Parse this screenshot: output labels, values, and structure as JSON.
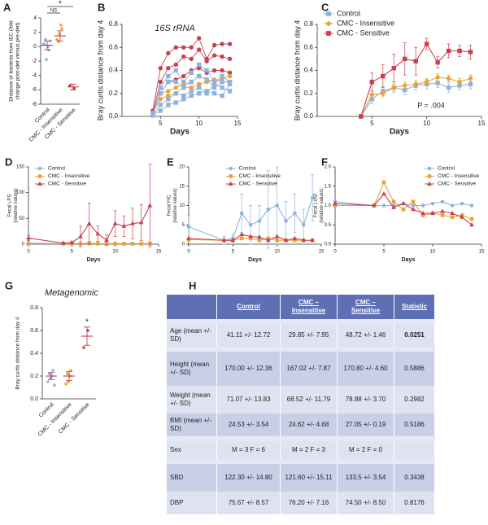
{
  "chart_data": [
    {
      "type": "dotplot",
      "panel": "A",
      "ylabel": [
        "Distance of bacteria from IEC (fold",
        "change post-diet versus pre-diet)"
      ],
      "categories": [
        "Control",
        "CMC - Insensitive",
        "CMC - Sensitive"
      ],
      "colors": [
        "#8fb3de",
        "#e8a33a",
        "#c9404f"
      ],
      "points": [
        [
          0.3,
          0,
          -0.5,
          1,
          -1.8,
          0.8,
          0.4
        ],
        [
          1,
          3,
          2.5,
          0.7,
          1.8
        ],
        [
          -5.4,
          -5.8
        ]
      ],
      "means": [
        0.2,
        1.5,
        -5.6
      ],
      "sd": [
        0.6,
        0.7,
        0.4
      ],
      "significance": [
        {
          "text": "NS",
          "between": [
            0,
            1
          ]
        },
        {
          "text": "*",
          "between": [
            0,
            2
          ]
        }
      ],
      "ylim": [
        -8,
        4
      ],
      "yticks": [
        -8,
        -6,
        -4,
        -2,
        0,
        2,
        4
      ]
    },
    {
      "type": "line",
      "panel": "B",
      "annotation": "16S rRNA",
      "ylabel": [
        "Bray curtis distance from day 4"
      ],
      "xlabel": "Days",
      "x": [
        4,
        5,
        6,
        7,
        8,
        9,
        10,
        11,
        12,
        13,
        14
      ],
      "series": [
        {
          "color": "#c9404f",
          "marker": "circle",
          "values": [
            0.05,
            0.42,
            0.55,
            0.6,
            0.6,
            0.6,
            0.68,
            0.5,
            0.62,
            0.63,
            0.63
          ]
        },
        {
          "color": "#c9404f",
          "marker": "circle",
          "values": [
            0.03,
            0.3,
            0.42,
            0.45,
            0.52,
            0.5,
            0.58,
            0.48,
            0.53,
            0.52,
            0.5
          ]
        },
        {
          "color": "#c9404f",
          "marker": "circle",
          "values": [
            0.02,
            0.2,
            0.3,
            0.32,
            0.35,
            0.4,
            0.42,
            0.38,
            0.4,
            0.4,
            0.38
          ]
        },
        {
          "color": "#e8a33a",
          "marker": "circle",
          "values": [
            0.02,
            0.2,
            0.22,
            0.25,
            0.28,
            0.3,
            0.35,
            0.32,
            0.3,
            0.33,
            0.35
          ]
        },
        {
          "color": "#e8a33a",
          "marker": "circle",
          "values": [
            0.03,
            0.15,
            0.18,
            0.2,
            0.25,
            0.25,
            0.28,
            0.3,
            0.32,
            0.3,
            0.3
          ]
        },
        {
          "color": "#8fb3de",
          "marker": "square",
          "values": [
            0.02,
            0.2,
            0.3,
            0.3,
            0.25,
            0.3,
            0.35,
            0.32,
            0.25,
            0.3,
            0.3
          ]
        },
        {
          "color": "#8fb3de",
          "marker": "square",
          "values": [
            0.01,
            0.1,
            0.15,
            0.2,
            0.18,
            0.22,
            0.25,
            0.2,
            0.28,
            0.25,
            0.22
          ]
        },
        {
          "color": "#8fb3de",
          "marker": "square",
          "values": [
            0.02,
            0.25,
            0.35,
            0.4,
            0.3,
            0.38,
            0.45,
            0.4,
            0.3,
            0.35,
            0.3
          ]
        },
        {
          "color": "#8fb3de",
          "marker": "square",
          "values": [
            0.01,
            0.05,
            0.1,
            0.12,
            0.15,
            0.18,
            0.2,
            0.22,
            0.2,
            0.18,
            0.28
          ]
        }
      ],
      "xlim": [
        0,
        15
      ],
      "xticks": [
        5,
        10,
        15
      ],
      "ylim": [
        0,
        0.8
      ],
      "yticks": [
        {
          "value": 0,
          "label": "0.0"
        },
        0.2,
        0.4,
        0.6,
        0.8
      ]
    },
    {
      "type": "line",
      "panel": "C",
      "annotation": "P = .004",
      "legend": "upper left",
      "ylabel": [
        "Bray curtis distance from day 4"
      ],
      "xlabel": "Days",
      "x": [
        4,
        5,
        6,
        7,
        8,
        9,
        10,
        11,
        12,
        13,
        14
      ],
      "series": [
        {
          "name": "Control",
          "color": "#8fb3de",
          "marker": "square",
          "values": [
            0,
            0.15,
            0.22,
            0.25,
            0.23,
            0.27,
            0.28,
            0.29,
            0.25,
            0.27,
            0.28
          ],
          "errors": [
            0,
            0.04,
            0.04,
            0.04,
            0.04,
            0.04,
            0.04,
            0.04,
            0.04,
            0.04,
            0.04
          ]
        },
        {
          "name": "CMC - Insensitive",
          "color": "#e8a33a",
          "marker": "circle",
          "values": [
            0,
            0.19,
            0.2,
            0.25,
            0.27,
            0.28,
            0.3,
            0.34,
            0.33,
            0.3,
            0.33
          ],
          "errors": [
            0,
            0.03,
            0.03,
            0.03,
            0.03,
            0.03,
            0.03,
            0.03,
            0.03,
            0.03,
            0.03
          ]
        },
        {
          "name": "CMC - Sensitive",
          "color": "#c9404f",
          "marker": "square",
          "values": [
            0,
            0.3,
            0.35,
            0.42,
            0.5,
            0.48,
            0.63,
            0.47,
            0.57,
            0.57,
            0.56
          ],
          "errors": [
            0,
            0.08,
            0.1,
            0.12,
            0.14,
            0.12,
            0.05,
            0.05,
            0.06,
            0.05,
            0.06
          ]
        }
      ],
      "xlim": [
        0,
        15
      ],
      "xticks": [
        5,
        10,
        15
      ],
      "ylim": [
        0,
        0.8
      ],
      "yticks": [
        {
          "value": 0,
          "label": "0.0"
        },
        0.2,
        0.4,
        0.6,
        0.8
      ]
    },
    {
      "type": "line",
      "panel": "D",
      "legend": "upper left",
      "ylabel": [
        "Fecal LPS",
        "(relative values)"
      ],
      "xlabel": "Days",
      "x": [
        0,
        4,
        5,
        6,
        7,
        8,
        9,
        10,
        11,
        12,
        13,
        14
      ],
      "series": [
        {
          "name": "Control",
          "color": "#8fb3de",
          "marker": "circle",
          "values": [
            2,
            1,
            1,
            1,
            1,
            1,
            1,
            1,
            1,
            1,
            1,
            1
          ]
        },
        {
          "name": "CMC - Insensitive",
          "color": "#e8a33a",
          "marker": "square",
          "values": [
            1,
            1,
            1,
            1,
            2,
            1,
            1,
            1,
            1,
            1,
            1,
            1
          ]
        },
        {
          "name": "CMC - Sensitive",
          "color": "#c9404f",
          "marker": "triangle",
          "values": [
            12,
            2,
            3,
            15,
            40,
            20,
            8,
            40,
            35,
            40,
            42,
            75
          ],
          "errors": [
            5,
            1,
            2,
            20,
            40,
            15,
            10,
            25,
            20,
            30,
            35,
            80
          ]
        }
      ],
      "xlim": [
        0,
        15
      ],
      "xticks": [
        0,
        5,
        10,
        15
      ],
      "ylim": [
        0,
        150
      ],
      "yticks": [
        0,
        50,
        100,
        150
      ]
    },
    {
      "type": "line",
      "panel": "E",
      "legend": "upper center",
      "ylabel": [
        "Fecal FIC",
        "(relative values)"
      ],
      "xlabel": "Days",
      "x": [
        0,
        4,
        5,
        6,
        7,
        8,
        9,
        10,
        11,
        12,
        13,
        14
      ],
      "series": [
        {
          "name": "Control",
          "color": "#8fb3de",
          "marker": "circle",
          "values": [
            4.5,
            1,
            1.5,
            8,
            5,
            6,
            9,
            10,
            6,
            8,
            5,
            12
          ],
          "errors": [
            3,
            1,
            1,
            5,
            5,
            4,
            10,
            10,
            5,
            5,
            4,
            6
          ]
        },
        {
          "name": "CMC - Insensitive",
          "color": "#e8a33a",
          "marker": "square",
          "values": [
            1.2,
            1,
            1,
            1.5,
            1.5,
            1,
            1.5,
            1,
            1,
            1,
            1,
            1
          ]
        },
        {
          "name": "CMC - Sensitive",
          "color": "#c9404f",
          "marker": "triangle",
          "values": [
            1.5,
            1,
            1,
            2.5,
            2,
            1.8,
            1,
            2,
            1,
            1.5,
            1,
            1
          ]
        }
      ],
      "xlim": [
        0,
        15
      ],
      "xticks": [
        0,
        5,
        10,
        15
      ],
      "ylim": [
        0,
        20
      ],
      "yticks": [
        0,
        5,
        10,
        15,
        20
      ]
    },
    {
      "type": "line",
      "panel": "F",
      "legend": "upper right",
      "ylabel": [
        "Fecal Lcn2",
        "(relative values)"
      ],
      "xlabel": "Days",
      "x": [
        0,
        4,
        5,
        6,
        7,
        8,
        9,
        10,
        11,
        12,
        13,
        14
      ],
      "series": [
        {
          "name": "Control",
          "color": "#8fb3de",
          "marker": "circle",
          "values": [
            1.1,
            1,
            1,
            1,
            1.05,
            1,
            1,
            1.05,
            1.1,
            1,
            1.05,
            1
          ]
        },
        {
          "name": "CMC - Insensitive",
          "color": "#e8a33a",
          "marker": "square",
          "values": [
            1,
            1,
            1.6,
            1.1,
            0.9,
            1.1,
            0.75,
            0.8,
            0.75,
            0.7,
            0.75,
            0.65
          ]
        },
        {
          "name": "CMC - Sensitive",
          "color": "#c9404f",
          "marker": "triangle",
          "values": [
            1.05,
            1,
            1.3,
            0.95,
            1.05,
            0.9,
            0.8,
            0.8,
            0.85,
            0.8,
            0.7,
            0.5
          ]
        }
      ],
      "xlim": [
        0,
        15
      ],
      "xticks": [
        0,
        5,
        10,
        15
      ],
      "ylim": [
        0,
        2
      ],
      "yticks": [
        {
          "value": 0,
          "label": "0.0"
        },
        0.5,
        {
          "value": 1,
          "label": "1.0"
        },
        1.5,
        {
          "value": 2,
          "label": "2.0"
        }
      ]
    },
    {
      "type": "dotplot",
      "panel": "G",
      "annotation": "Metagenomic",
      "ylabel": [
        "Bray curtis distance from day 4"
      ],
      "categories": [
        "Control",
        "CMC - Insensitive",
        "CMC - Sensitive"
      ],
      "colors": [
        "#8fb3de",
        "#e8a33a",
        "#c9404f"
      ],
      "points": [
        [
          0.15,
          0.2,
          0.25,
          0.22,
          0.18,
          0.12
        ],
        [
          0.13,
          0.2,
          0.25,
          0.22,
          0.15
        ],
        [
          0.45,
          0.6
        ]
      ],
      "means": [
        0.2,
        0.2,
        0.55
      ],
      "sd": [
        0.03,
        0.04,
        0.08
      ],
      "significance": [
        {
          "text": "*",
          "between": [
            2,
            2
          ]
        }
      ],
      "ylim": [
        0,
        0.8
      ],
      "yticks": [
        {
          "value": 0,
          "label": "0.0"
        },
        0.2,
        0.4,
        0.6,
        0.8
      ]
    }
  ],
  "table": {
    "panel": "H",
    "header": [
      "Control",
      "CMC – Insensitive",
      "CMC – Sensitive",
      "Statistic"
    ],
    "rows": [
      [
        "Age (mean +/- SD)",
        "41.11 +/- 12.72",
        "29.85 +/- 7.95",
        "48.72 +/- 1.46",
        "0.0251"
      ],
      [
        "Height (mean +/- SD)",
        "170.00 +/- 12.36",
        "167.02 +/- 7.87",
        "170.80 +/- 4.60",
        "0.5886"
      ],
      [
        "Weight (mean +/- SD)",
        "71.07 +/- 13.83",
        "68.52 +/- 11.79",
        "78.88 +/- 3.70",
        "0.2982"
      ],
      [
        "BMI (mean +/- SD)",
        "24.53 +/- 3.54",
        "24.62 +/- 4.68",
        "27.05 +/- 0.19",
        "0.5186"
      ],
      [
        "Sex",
        "M = 3 F = 6",
        "M = 2 F = 3",
        "M = 2 F = 0"
      ],
      [
        "SBD",
        "122.30 +/- 14.80",
        "121.60 +/- 15.11",
        "133.5 +/- 3.54",
        "0.3438"
      ],
      [
        "DBP",
        "75.67 +/- 8.57",
        "76.20 +/- 7.16",
        "74.50 +/- 8.50",
        "0.8176"
      ]
    ],
    "bold_cells": [
      [
        0,
        4
      ]
    ]
  }
}
